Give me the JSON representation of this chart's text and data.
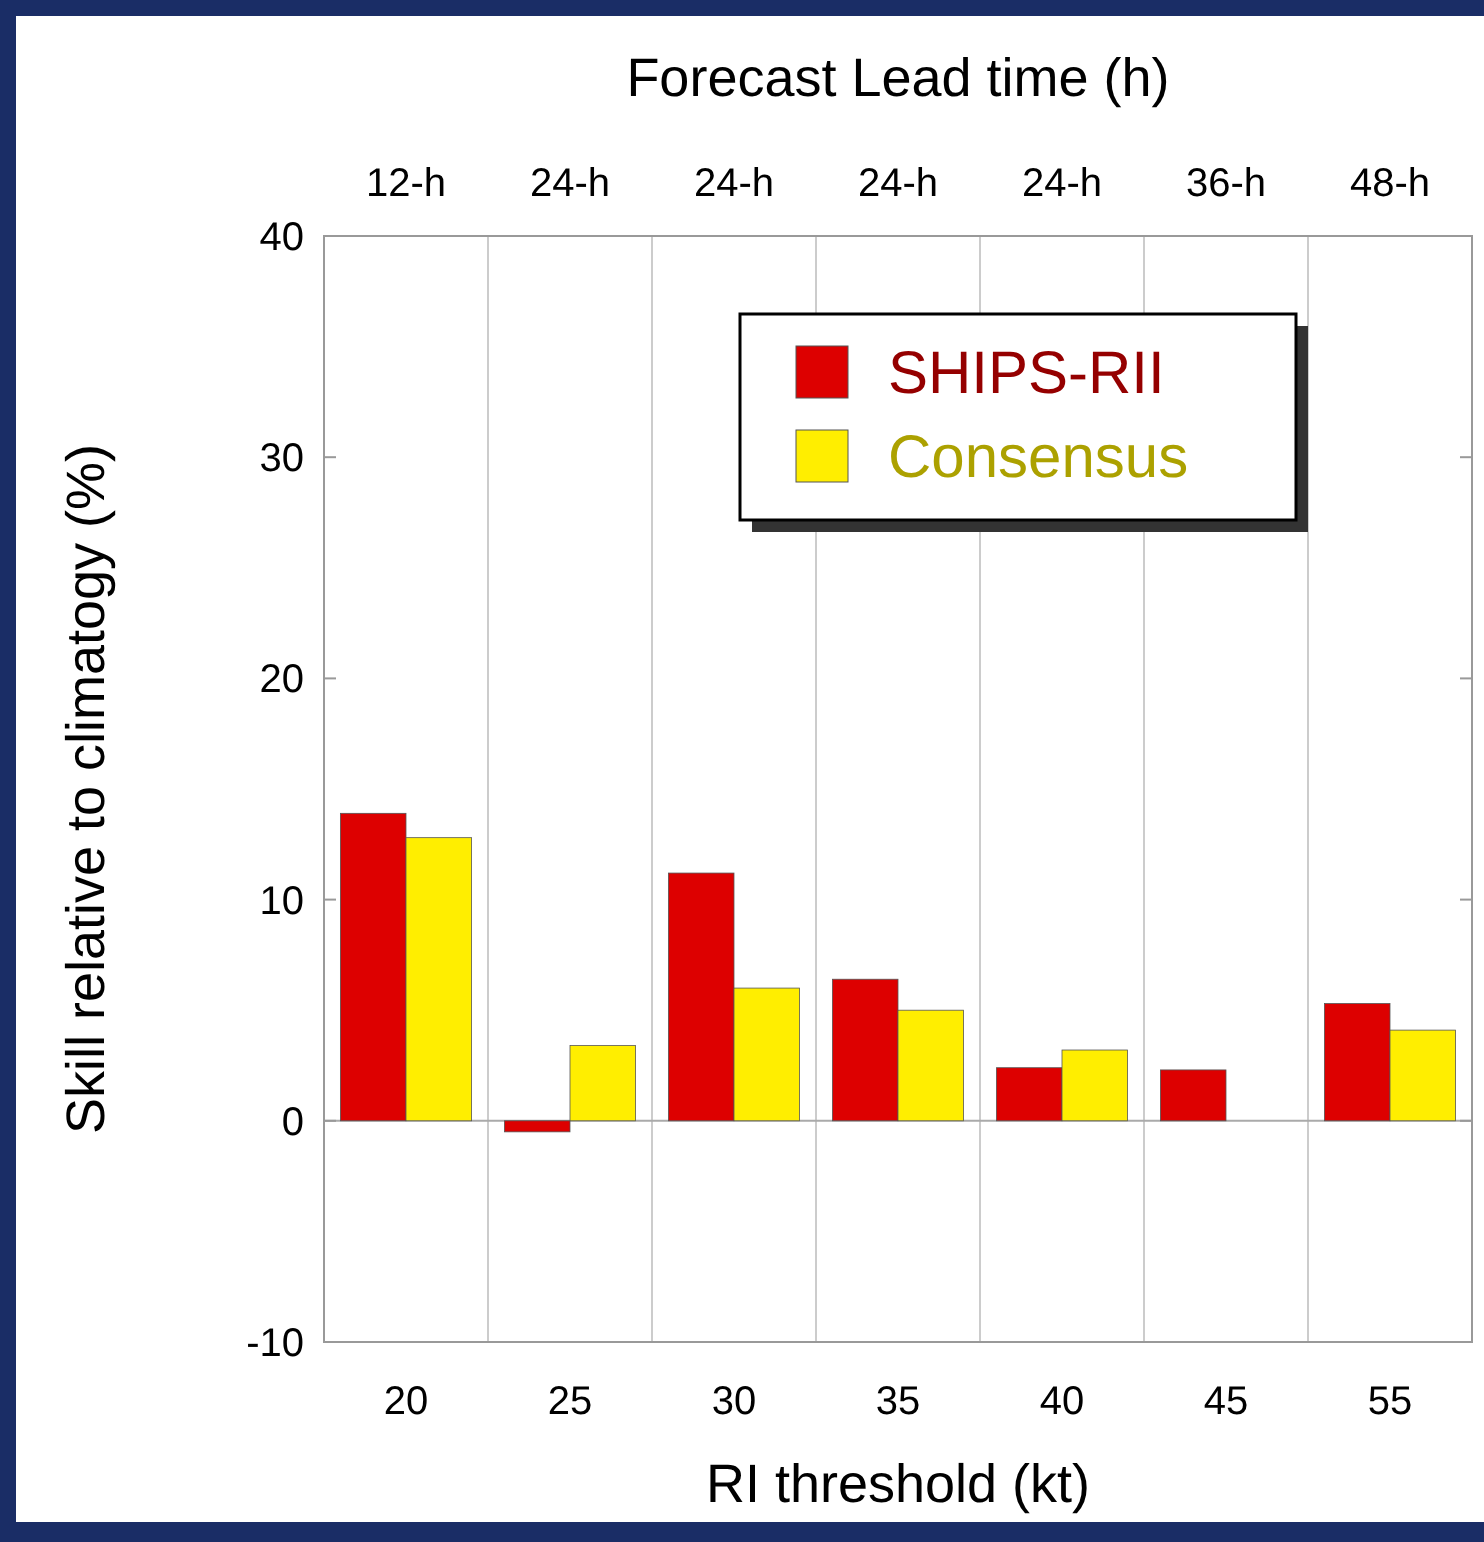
{
  "chart_data": {
    "type": "bar",
    "xlabel": "RI threshold (kt)",
    "ylabel": "Skill relative to climatogy (%)",
    "x2label": "Forecast Lead time (h)",
    "categories": [
      "20",
      "25",
      "30",
      "35",
      "40",
      "45",
      "55"
    ],
    "series": [
      {
        "name": "SHIPS-RII",
        "color": "#dd0000",
        "values": [
          13.9,
          -0.5,
          11.2,
          6.4,
          2.4,
          2.3,
          5.3
        ]
      },
      {
        "name": "Consensus",
        "color": "#ffee00",
        "values": [
          12.8,
          3.4,
          6.0,
          5.0,
          3.2,
          null,
          4.1
        ]
      }
    ],
    "annotations": [
      "12-h",
      "24-h",
      "24-h",
      "24-h",
      "24-h",
      "36-h",
      "48-h"
    ],
    "ylim": [
      -10,
      40
    ],
    "yticks": [
      -10,
      0,
      10,
      20,
      30,
      40
    ],
    "grid": "x",
    "legend": "top right"
  }
}
